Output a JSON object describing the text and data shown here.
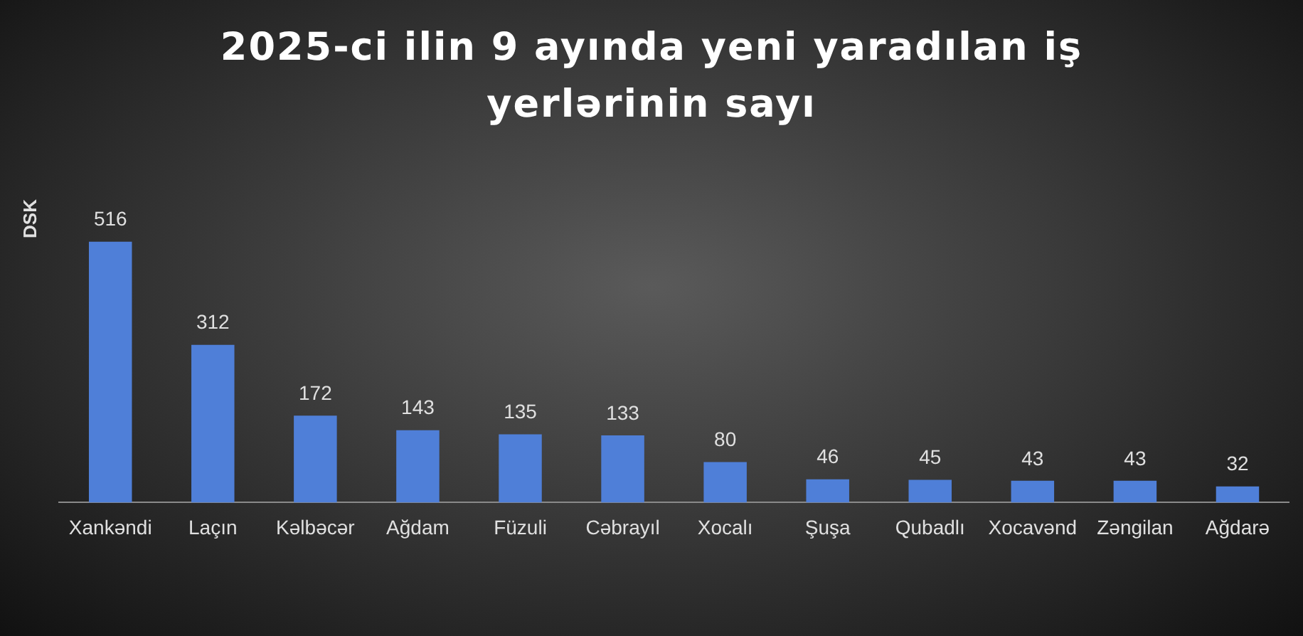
{
  "chart_data": {
    "type": "bar",
    "title": "2025-ci ilin 9 ayında yeni yaradılan iş yerlərinin sayı",
    "ylabel": "DSK",
    "categories": [
      "Xankəndi",
      "Laçın",
      "Kəlbəcər",
      "Ağdam",
      "Füzuli",
      "Cəbrayıl",
      "Xocalı",
      "Şuşa",
      "Qubadlı",
      "Xocavənd",
      "Zəngilan",
      "Ağdarə"
    ],
    "values": [
      516,
      312,
      172,
      143,
      135,
      133,
      80,
      46,
      45,
      43,
      43,
      32
    ],
    "color": "#4f7fd8",
    "data_labels": true,
    "grid": false,
    "legend": false
  }
}
